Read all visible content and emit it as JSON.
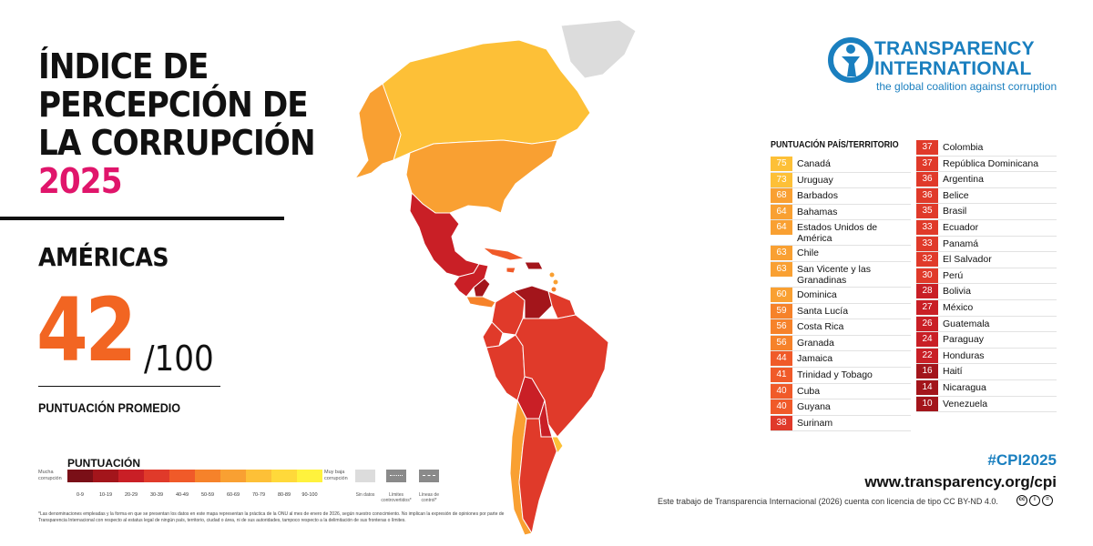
{
  "header": {
    "title_line1": "ÍNDICE DE",
    "title_line2": "PERCEPCIÓN DE",
    "title_line3": "LA CORRUPCIÓN",
    "year": "2025"
  },
  "region": {
    "name": "AMÉRICAS",
    "score": "42",
    "out_of": "/100",
    "score_label": "PUNTUACIÓN PROMEDIO"
  },
  "legend": {
    "title": "PUNTUACIÓN",
    "left_label": "Mucha corrupción",
    "right_label": "Muy baja corrupción",
    "ranges": [
      "0-9",
      "10-19",
      "20-29",
      "30-39",
      "40-49",
      "50-59",
      "60-69",
      "70-79",
      "80-89",
      "90-100"
    ],
    "range_colors": [
      "#7a0f17",
      "#a3151b",
      "#c91f26",
      "#e03a2a",
      "#f05a29",
      "#f6822a",
      "#f9a032",
      "#fdc037",
      "#ffd93a",
      "#fff23d"
    ],
    "no_data_label": "Sin datos",
    "disputed_label": "Límites controvertidos*",
    "control_label": "Líneas de control*"
  },
  "footnote": "*Las denominaciones empleadas y la forma en que se presentan los datos en este mapa representan la práctica de la ONU al mes de enero de 2026, según nuestro conocimiento. No implican la expresión de opiniones por parte de Transparencia Internacional con respecto al estatus legal de ningún país, territorio, ciudad o área, ni de sus autoridades, tampoco respecto a la delimitación de sus fronteras o límites.",
  "logo": {
    "line1": "TRANSPARENCY",
    "line2": "INTERNATIONAL",
    "tagline": "the global coalition against corruption"
  },
  "table": {
    "header": "PUNTUACIÓN PAÍS/TERRITORIO",
    "left": [
      {
        "score": "75",
        "name": "Canadá",
        "color": "#fdc037"
      },
      {
        "score": "73",
        "name": "Uruguay",
        "color": "#fdc037"
      },
      {
        "score": "68",
        "name": "Barbados",
        "color": "#f9a032"
      },
      {
        "score": "64",
        "name": "Bahamas",
        "color": "#f9a032"
      },
      {
        "score": "64",
        "name": "Estados Unidos de América",
        "color": "#f9a032",
        "tall": true
      },
      {
        "score": "63",
        "name": "Chile",
        "color": "#f9a032"
      },
      {
        "score": "63",
        "name": "San Vicente y las Granadinas",
        "color": "#f9a032",
        "tall": true
      },
      {
        "score": "60",
        "name": "Dominica",
        "color": "#f9a032"
      },
      {
        "score": "59",
        "name": "Santa Lucía",
        "color": "#f6822a"
      },
      {
        "score": "56",
        "name": "Costa Rica",
        "color": "#f6822a"
      },
      {
        "score": "56",
        "name": "Granada",
        "color": "#f6822a"
      },
      {
        "score": "44",
        "name": "Jamaica",
        "color": "#f05a29"
      },
      {
        "score": "41",
        "name": "Trinidad y Tobago",
        "color": "#f05a29"
      },
      {
        "score": "40",
        "name": "Cuba",
        "color": "#f05a29"
      },
      {
        "score": "40",
        "name": "Guyana",
        "color": "#f05a29"
      },
      {
        "score": "38",
        "name": "Surinam",
        "color": "#e03a2a"
      }
    ],
    "right": [
      {
        "score": "37",
        "name": "Colombia",
        "color": "#e03a2a"
      },
      {
        "score": "37",
        "name": "República Dominicana",
        "color": "#e03a2a"
      },
      {
        "score": "36",
        "name": "Argentina",
        "color": "#e03a2a"
      },
      {
        "score": "36",
        "name": "Belice",
        "color": "#e03a2a"
      },
      {
        "score": "35",
        "name": "Brasil",
        "color": "#e03a2a"
      },
      {
        "score": "33",
        "name": "Ecuador",
        "color": "#e03a2a"
      },
      {
        "score": "33",
        "name": "Panamá",
        "color": "#e03a2a"
      },
      {
        "score": "32",
        "name": "El Salvador",
        "color": "#e03a2a"
      },
      {
        "score": "30",
        "name": "Perú",
        "color": "#e03a2a"
      },
      {
        "score": "28",
        "name": "Bolivia",
        "color": "#c91f26"
      },
      {
        "score": "27",
        "name": "México",
        "color": "#c91f26"
      },
      {
        "score": "26",
        "name": "Guatemala",
        "color": "#c91f26"
      },
      {
        "score": "24",
        "name": "Paraguay",
        "color": "#c91f26"
      },
      {
        "score": "22",
        "name": "Honduras",
        "color": "#c91f26"
      },
      {
        "score": "16",
        "name": "Haití",
        "color": "#a3151b"
      },
      {
        "score": "14",
        "name": "Nicaragua",
        "color": "#a3151b"
      },
      {
        "score": "10",
        "name": "Venezuela",
        "color": "#a3151b"
      }
    ]
  },
  "footer": {
    "hashtag": "#CPI2025",
    "url": "www.transparency.org/cpi",
    "license": "Este trabajo de Transparencia Internacional (2026) cuenta con licencia de tipo CC BY-ND 4.0."
  }
}
